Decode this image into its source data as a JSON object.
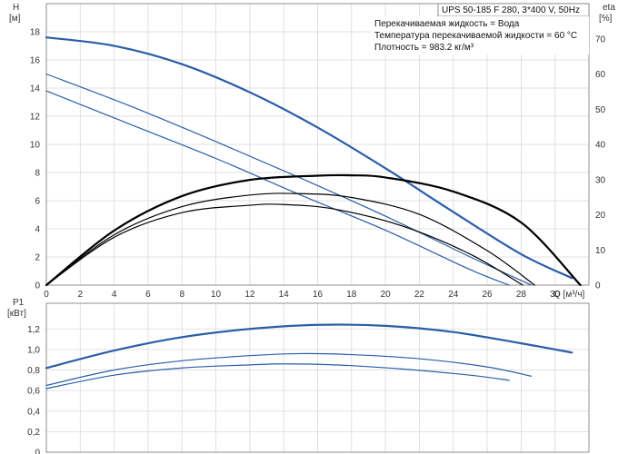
{
  "chart_data": [
    {
      "type": "line",
      "panel": "head_efficiency",
      "title": "UPS 50-185 F 280, 3*400 V, 50Hz",
      "annotations": [
        "Перекачиваемая жидкость = Вода",
        "Температура перекачиваемой жидкости = 60 °C",
        "Плотность = 983.2 кг/м³"
      ],
      "xlabel": "Q [м³/ч]",
      "ylabel_left": [
        "H",
        "[м]"
      ],
      "ylabel_right": [
        "eta",
        "[%]"
      ],
      "xlim": [
        0,
        32
      ],
      "ylim_left": [
        0,
        20
      ],
      "ylim_right": [
        0,
        80
      ],
      "x_ticks": [
        "0",
        "2",
        "4",
        "6",
        "8",
        "10",
        "12",
        "14",
        "16",
        "18",
        "20",
        "22",
        "24",
        "26",
        "28",
        "30"
      ],
      "y_ticks_left": [
        "0",
        "2",
        "4",
        "6",
        "8",
        "10",
        "12",
        "14",
        "16",
        "18"
      ],
      "y_ticks_right": [
        "0",
        "10",
        "20",
        "30",
        "40",
        "50",
        "60",
        "70"
      ],
      "grid": true,
      "series": [
        {
          "kind": "head",
          "axis": "left",
          "color": "#2a5ea8",
          "width": 2.2,
          "x": [
            0,
            4,
            8,
            12,
            16,
            20,
            24,
            28,
            31
          ],
          "y": [
            17.6,
            17.0,
            15.7,
            13.7,
            11.2,
            8.3,
            5.2,
            2.2,
            0.5
          ]
        },
        {
          "kind": "head",
          "axis": "left",
          "color": "#2a5ea8",
          "width": 1.2,
          "x": [
            0,
            5,
            10,
            15,
            20,
            25,
            28.6
          ],
          "y": [
            15.0,
            12.7,
            10.2,
            7.6,
            4.9,
            2.0,
            0
          ]
        },
        {
          "kind": "head",
          "axis": "left",
          "color": "#2a5ea8",
          "width": 1.2,
          "x": [
            0,
            5,
            10,
            15,
            20,
            25,
            27.3
          ],
          "y": [
            13.8,
            11.4,
            9.0,
            6.4,
            3.9,
            1.1,
            0
          ]
        },
        {
          "kind": "efficiency",
          "axis": "right",
          "color": "#000000",
          "width": 2.2,
          "x": [
            0,
            4,
            8,
            12,
            16,
            18,
            20,
            24,
            28,
            31.5
          ],
          "y": [
            0,
            15.5,
            25.3,
            29.9,
            31.1,
            31.2,
            30.6,
            26.6,
            17.8,
            0
          ]
        },
        {
          "kind": "efficiency",
          "axis": "right",
          "color": "#000000",
          "width": 1.2,
          "x": [
            0,
            4,
            8,
            12,
            15,
            18,
            22,
            26,
            28.8
          ],
          "y": [
            0,
            14.3,
            22.3,
            25.6,
            26.0,
            24.9,
            20.1,
            9.8,
            0
          ]
        },
        {
          "kind": "efficiency",
          "axis": "right",
          "color": "#000000",
          "width": 1.2,
          "x": [
            0,
            4,
            8,
            12,
            14,
            17,
            21,
            25,
            28.1
          ],
          "y": [
            0,
            13.6,
            20.6,
            22.7,
            22.9,
            21.6,
            16.8,
            8.8,
            0
          ]
        }
      ]
    },
    {
      "type": "line",
      "panel": "power",
      "ylabel": [
        "P1",
        "[кВт]"
      ],
      "xlim": [
        0,
        32
      ],
      "ylim": [
        0,
        1.45
      ],
      "y_ticks": [
        "0",
        "0,2",
        "0,4",
        "0,6",
        "0,8",
        "1,0",
        "1,2"
      ],
      "grid": true,
      "series": [
        {
          "color": "#2a5ea8",
          "width": 2.2,
          "x": [
            0,
            4,
            8,
            12,
            16,
            20,
            24,
            28,
            31
          ],
          "y": [
            0.82,
            0.99,
            1.12,
            1.2,
            1.24,
            1.23,
            1.17,
            1.06,
            0.97
          ]
        },
        {
          "color": "#2a5ea8",
          "width": 1.2,
          "x": [
            0,
            4,
            8,
            12,
            15,
            18,
            22,
            26,
            28.6
          ],
          "y": [
            0.65,
            0.8,
            0.89,
            0.94,
            0.96,
            0.95,
            0.91,
            0.83,
            0.74
          ]
        },
        {
          "color": "#2a5ea8",
          "width": 1.2,
          "x": [
            0,
            4,
            8,
            12,
            14,
            17,
            21,
            25,
            27.3
          ],
          "y": [
            0.62,
            0.75,
            0.82,
            0.85,
            0.86,
            0.85,
            0.81,
            0.75,
            0.7
          ]
        }
      ]
    }
  ]
}
